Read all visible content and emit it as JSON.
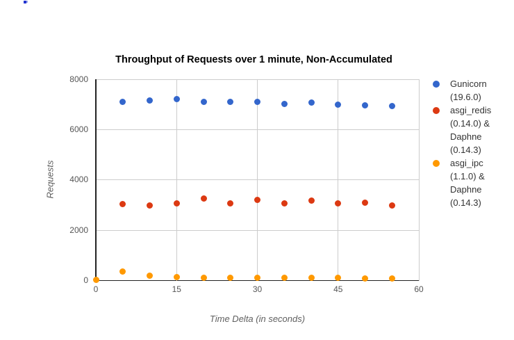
{
  "colors": {
    "series_blue": "#3366CC",
    "series_red": "#DC3912",
    "series_orange": "#FF9900",
    "gridline": "#cccccc",
    "axis_line": "#222222",
    "tick_label": "#555555",
    "axis_title": "#5f5f5f",
    "title": "#000000",
    "legend_text": "#333333",
    "artifact_dark": "#2234d0",
    "artifact_light": "#98a6ea"
  },
  "legend": {
    "items": [
      {
        "lines": [
          "Gunicorn",
          "(19.6.0)"
        ]
      },
      {
        "lines": [
          "asgi_redis",
          "(0.14.0) &",
          "Daphne",
          "(0.14.3)"
        ]
      },
      {
        "lines": [
          "asgi_ipc",
          "(1.1.0) &",
          "Daphne",
          "(0.14.3)"
        ]
      }
    ]
  },
  "chart_data": {
    "type": "scatter",
    "title": "Throughput of Requests over 1 minute, Non-Accumulated",
    "xlabel": "Time Delta (in seconds)",
    "ylabel": "Requests",
    "xlim": [
      0,
      60
    ],
    "ylim": [
      0,
      8000
    ],
    "x_ticks": [
      0,
      15,
      30,
      45,
      60
    ],
    "y_ticks": [
      0,
      2000,
      4000,
      6000,
      8000
    ],
    "grid": true,
    "legend_position": "right",
    "series": [
      {
        "name": "Gunicorn (19.6.0)",
        "color": "#3366CC",
        "points": [
          [
            5,
            7110
          ],
          [
            10,
            7160
          ],
          [
            15,
            7200
          ],
          [
            20,
            7110
          ],
          [
            25,
            7110
          ],
          [
            30,
            7090
          ],
          [
            35,
            7010
          ],
          [
            40,
            7080
          ],
          [
            45,
            6980
          ],
          [
            50,
            6950
          ],
          [
            55,
            6930
          ]
        ]
      },
      {
        "name": "asgi_redis (0.14.0) & Daphne (0.14.3)",
        "color": "#DC3912",
        "points": [
          [
            5,
            3030
          ],
          [
            10,
            2980
          ],
          [
            15,
            3080
          ],
          [
            20,
            3260
          ],
          [
            25,
            3070
          ],
          [
            30,
            3200
          ],
          [
            35,
            3060
          ],
          [
            40,
            3190
          ],
          [
            45,
            3060
          ],
          [
            50,
            3090
          ],
          [
            55,
            2980
          ]
        ]
      },
      {
        "name": "asgi_ipc (1.1.0) & Daphne (0.14.3)",
        "color": "#FF9900",
        "points": [
          [
            0,
            20
          ],
          [
            5,
            360
          ],
          [
            10,
            190
          ],
          [
            15,
            140
          ],
          [
            20,
            120
          ],
          [
            25,
            110
          ],
          [
            30,
            110
          ],
          [
            35,
            100
          ],
          [
            40,
            110
          ],
          [
            45,
            100
          ],
          [
            50,
            90
          ],
          [
            55,
            90
          ]
        ]
      }
    ]
  }
}
